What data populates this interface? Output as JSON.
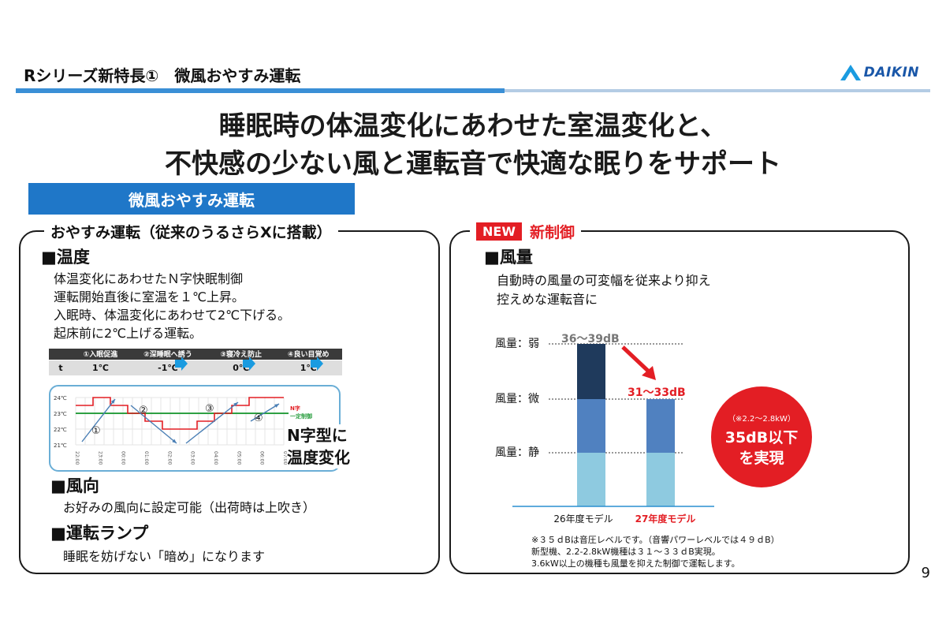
{
  "header": {
    "title": "Rシリーズ新特長①　微風おやすみ運転",
    "logo_text": "DAIKIN"
  },
  "headline": {
    "line1": "睡眠時の体温変化にあわせた室温変化と、",
    "line2": "不快感の少ない風と運転音で快適な眠りをサポート"
  },
  "mode_banner": "微風おやすみ運転",
  "left_panel": {
    "heading": "おやすみ運転（従来のうるさらXに搭載）",
    "temp": {
      "title": "■温度",
      "lines": [
        "体温変化にあわせたＮ字快眠制御",
        "運転開始直後に室温を１℃上昇。",
        "入眠時、体温変化にあわせて2℃下げる。",
        "起床前に2℃上げる運転。"
      ]
    },
    "steps_table": {
      "row_label": "t",
      "headers": [
        "①入眠促進",
        "②深睡眠へ誘う",
        "③寝冷え防止",
        "④良い目覚め"
      ],
      "values": [
        "1℃",
        "-1℃",
        "0℃",
        "1℃"
      ]
    },
    "graph": {
      "y_ticks": [
        "24℃",
        "23℃",
        "22℃",
        "21℃"
      ],
      "x_ticks": [
        "22:00",
        "23:00",
        "00:00",
        "01:00",
        "02:00",
        "03:00",
        "04:00",
        "05:00",
        "06:00",
        "07:00"
      ],
      "markers": [
        "①",
        "②",
        "③",
        "④"
      ],
      "legend_line1": "N字",
      "legend_line2": "一定制御",
      "series_nshape": [
        23.5,
        24,
        23.5,
        23,
        22.5,
        22,
        22,
        22.5,
        23,
        23.5,
        24,
        24
      ],
      "series_constant": 23,
      "colors": {
        "nshape": "#e31e24",
        "constant": "#2ea043",
        "arrow": "#4a7fb5"
      }
    },
    "callout_line1": "N字型に",
    "callout_line2": "温度変化",
    "wind_dir": {
      "title": "■風向",
      "line": "お好みの風向に設定可能（出荷時は上吹き）"
    },
    "lamp": {
      "title": "■運転ランプ",
      "line": "睡眠を妨げない「暗め」になります"
    }
  },
  "right_panel": {
    "new_badge": "NEW",
    "heading": "新制御",
    "airflow": {
      "title": "■風量",
      "lines": [
        "自動時の風量の可変幅を従来より抑え",
        "控えめな運転音に"
      ]
    },
    "chart_data": {
      "type": "bar",
      "categories": [
        "26年度モデル",
        "27年度モデル"
      ],
      "stack_levels": [
        "風量：静",
        "風量：微",
        "風量：弱"
      ],
      "series": [
        {
          "values": [
            "静",
            "静"
          ],
          "color": "#8ecae0"
        },
        {
          "values": [
            "微",
            "微"
          ],
          "color": "#5081c0"
        },
        {
          "values": [
            "弱",
            null
          ],
          "color": "#1f3a5c"
        }
      ],
      "annotations": {
        "old_db": "36〜39dB",
        "new_db": "31〜33dB"
      },
      "colors": {
        "old_label": "#777777",
        "new_label": "#e31e24",
        "arrow": "#e31e24"
      }
    },
    "circle": {
      "small": "（※2.2〜2.8kW）",
      "big1": "35dB以下",
      "big2": "を実現"
    },
    "footnotes": [
      "※３５ｄBは音圧レベルです。（音響パワーレベルでは４９ｄB）",
      "新型機、2.2-2.8kW機種は３１～３３ｄB実現。",
      "3.6kW以上の機種も風量を抑えた制御で運転します。"
    ]
  },
  "page_number": "9"
}
